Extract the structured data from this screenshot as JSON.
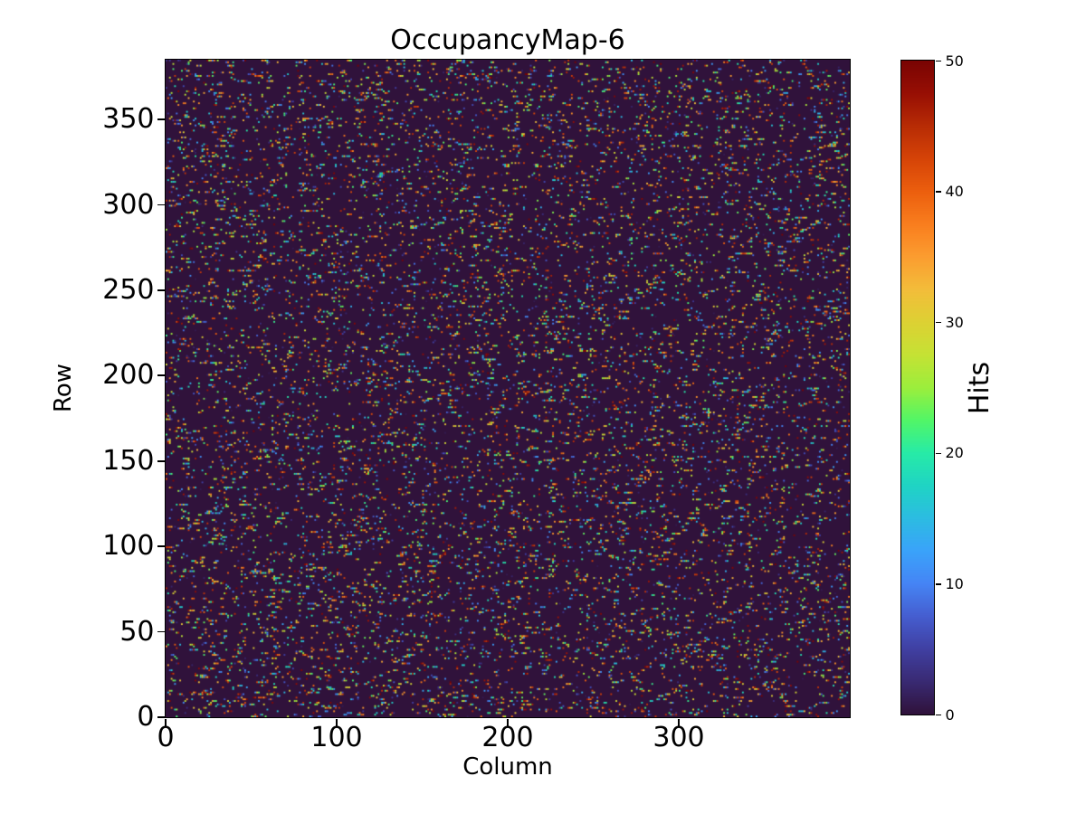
{
  "chart_data": {
    "type": "heatmap",
    "title": "OccupancyMap-6",
    "xlabel": "Column",
    "ylabel": "Row",
    "x_range": [
      0,
      400
    ],
    "y_range": [
      0,
      385
    ],
    "x_ticks": [
      0,
      100,
      200,
      300
    ],
    "y_ticks": [
      0,
      50,
      100,
      150,
      200,
      250,
      300,
      350
    ],
    "grid": {
      "n_cols": 400,
      "n_rows": 385
    },
    "colorbar": {
      "label": "Hits",
      "ticks": [
        0,
        10,
        20,
        30,
        40,
        50
      ],
      "vmin": 0,
      "vmax": 50,
      "colormap": "turbo",
      "position": "right"
    },
    "pattern": {
      "description": "sparse random hit pixels in short horizontal runs over a dark empty background",
      "background_value": 0,
      "hit_start_probability": 0.065,
      "hit_run_continue_probability": 0.4,
      "hit_value_min": 1,
      "hit_value_max": 50,
      "seed": 6
    },
    "colors": {
      "background": "#30123b",
      "max": "#7a0403",
      "text": "#000000",
      "turbo_stops": [
        "#30123b",
        "#392a73",
        "#4040a3",
        "#455ed0",
        "#4585f5",
        "#3aa3fa",
        "#2cbce2",
        "#1fd4c4",
        "#27eba7",
        "#52f667",
        "#9cee3c",
        "#c5e234",
        "#ddd133",
        "#f3bd3a",
        "#fb9d30",
        "#f97e1e",
        "#ec5f0e",
        "#d64407",
        "#b82c05",
        "#980f04",
        "#7a0403"
      ]
    }
  }
}
